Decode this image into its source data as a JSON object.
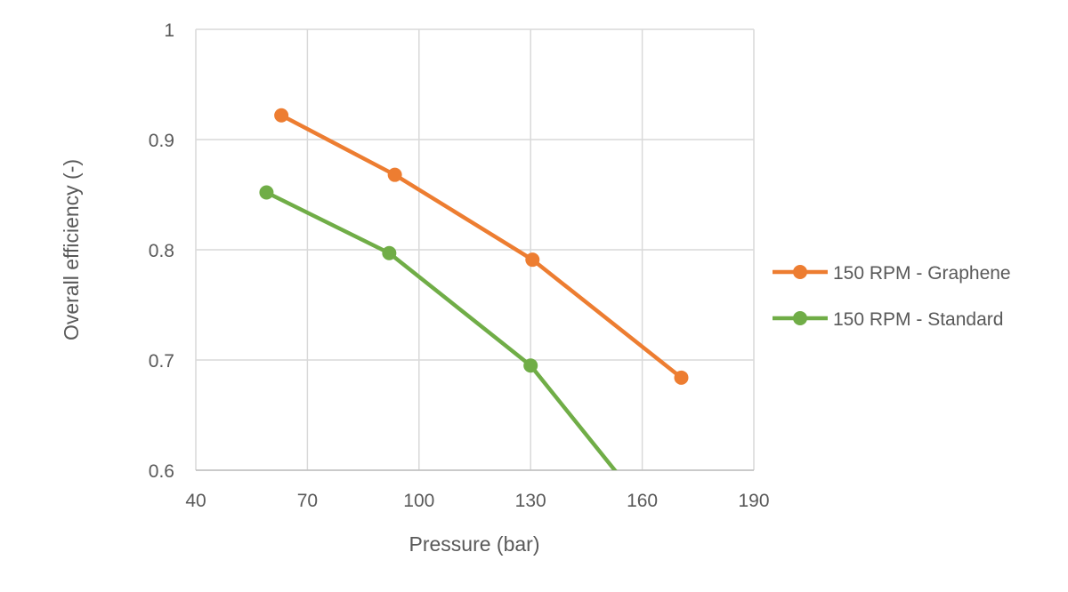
{
  "chart_data": {
    "type": "line",
    "xlabel": "Pressure (bar)",
    "ylabel": "Overall efficiency (-)",
    "xlim": [
      40,
      190
    ],
    "ylim": [
      0.6,
      1
    ],
    "xticks": [
      40,
      70,
      100,
      130,
      160,
      190
    ],
    "yticks": [
      0.6,
      0.7,
      0.8,
      0.9,
      1
    ],
    "xtick_labels": [
      "40",
      "70",
      "100",
      "130",
      "160",
      "190"
    ],
    "ytick_labels": [
      "0.6",
      "0.7",
      "0.8",
      "0.9",
      "1"
    ],
    "grid": true,
    "legend_position": "right",
    "series": [
      {
        "name": "150 RPM - Graphene",
        "color": "#ED7D31",
        "points": [
          {
            "x": 63,
            "y": 0.922
          },
          {
            "x": 93.5,
            "y": 0.868
          },
          {
            "x": 130.5,
            "y": 0.791
          },
          {
            "x": 170.5,
            "y": 0.684
          }
        ]
      },
      {
        "name": "150 RPM - Standard",
        "color": "#70AD47",
        "points": [
          {
            "x": 59,
            "y": 0.852
          },
          {
            "x": 92,
            "y": 0.797
          },
          {
            "x": 130,
            "y": 0.695
          },
          {
            "x": 155,
            "y": 0.59
          }
        ]
      }
    ]
  }
}
